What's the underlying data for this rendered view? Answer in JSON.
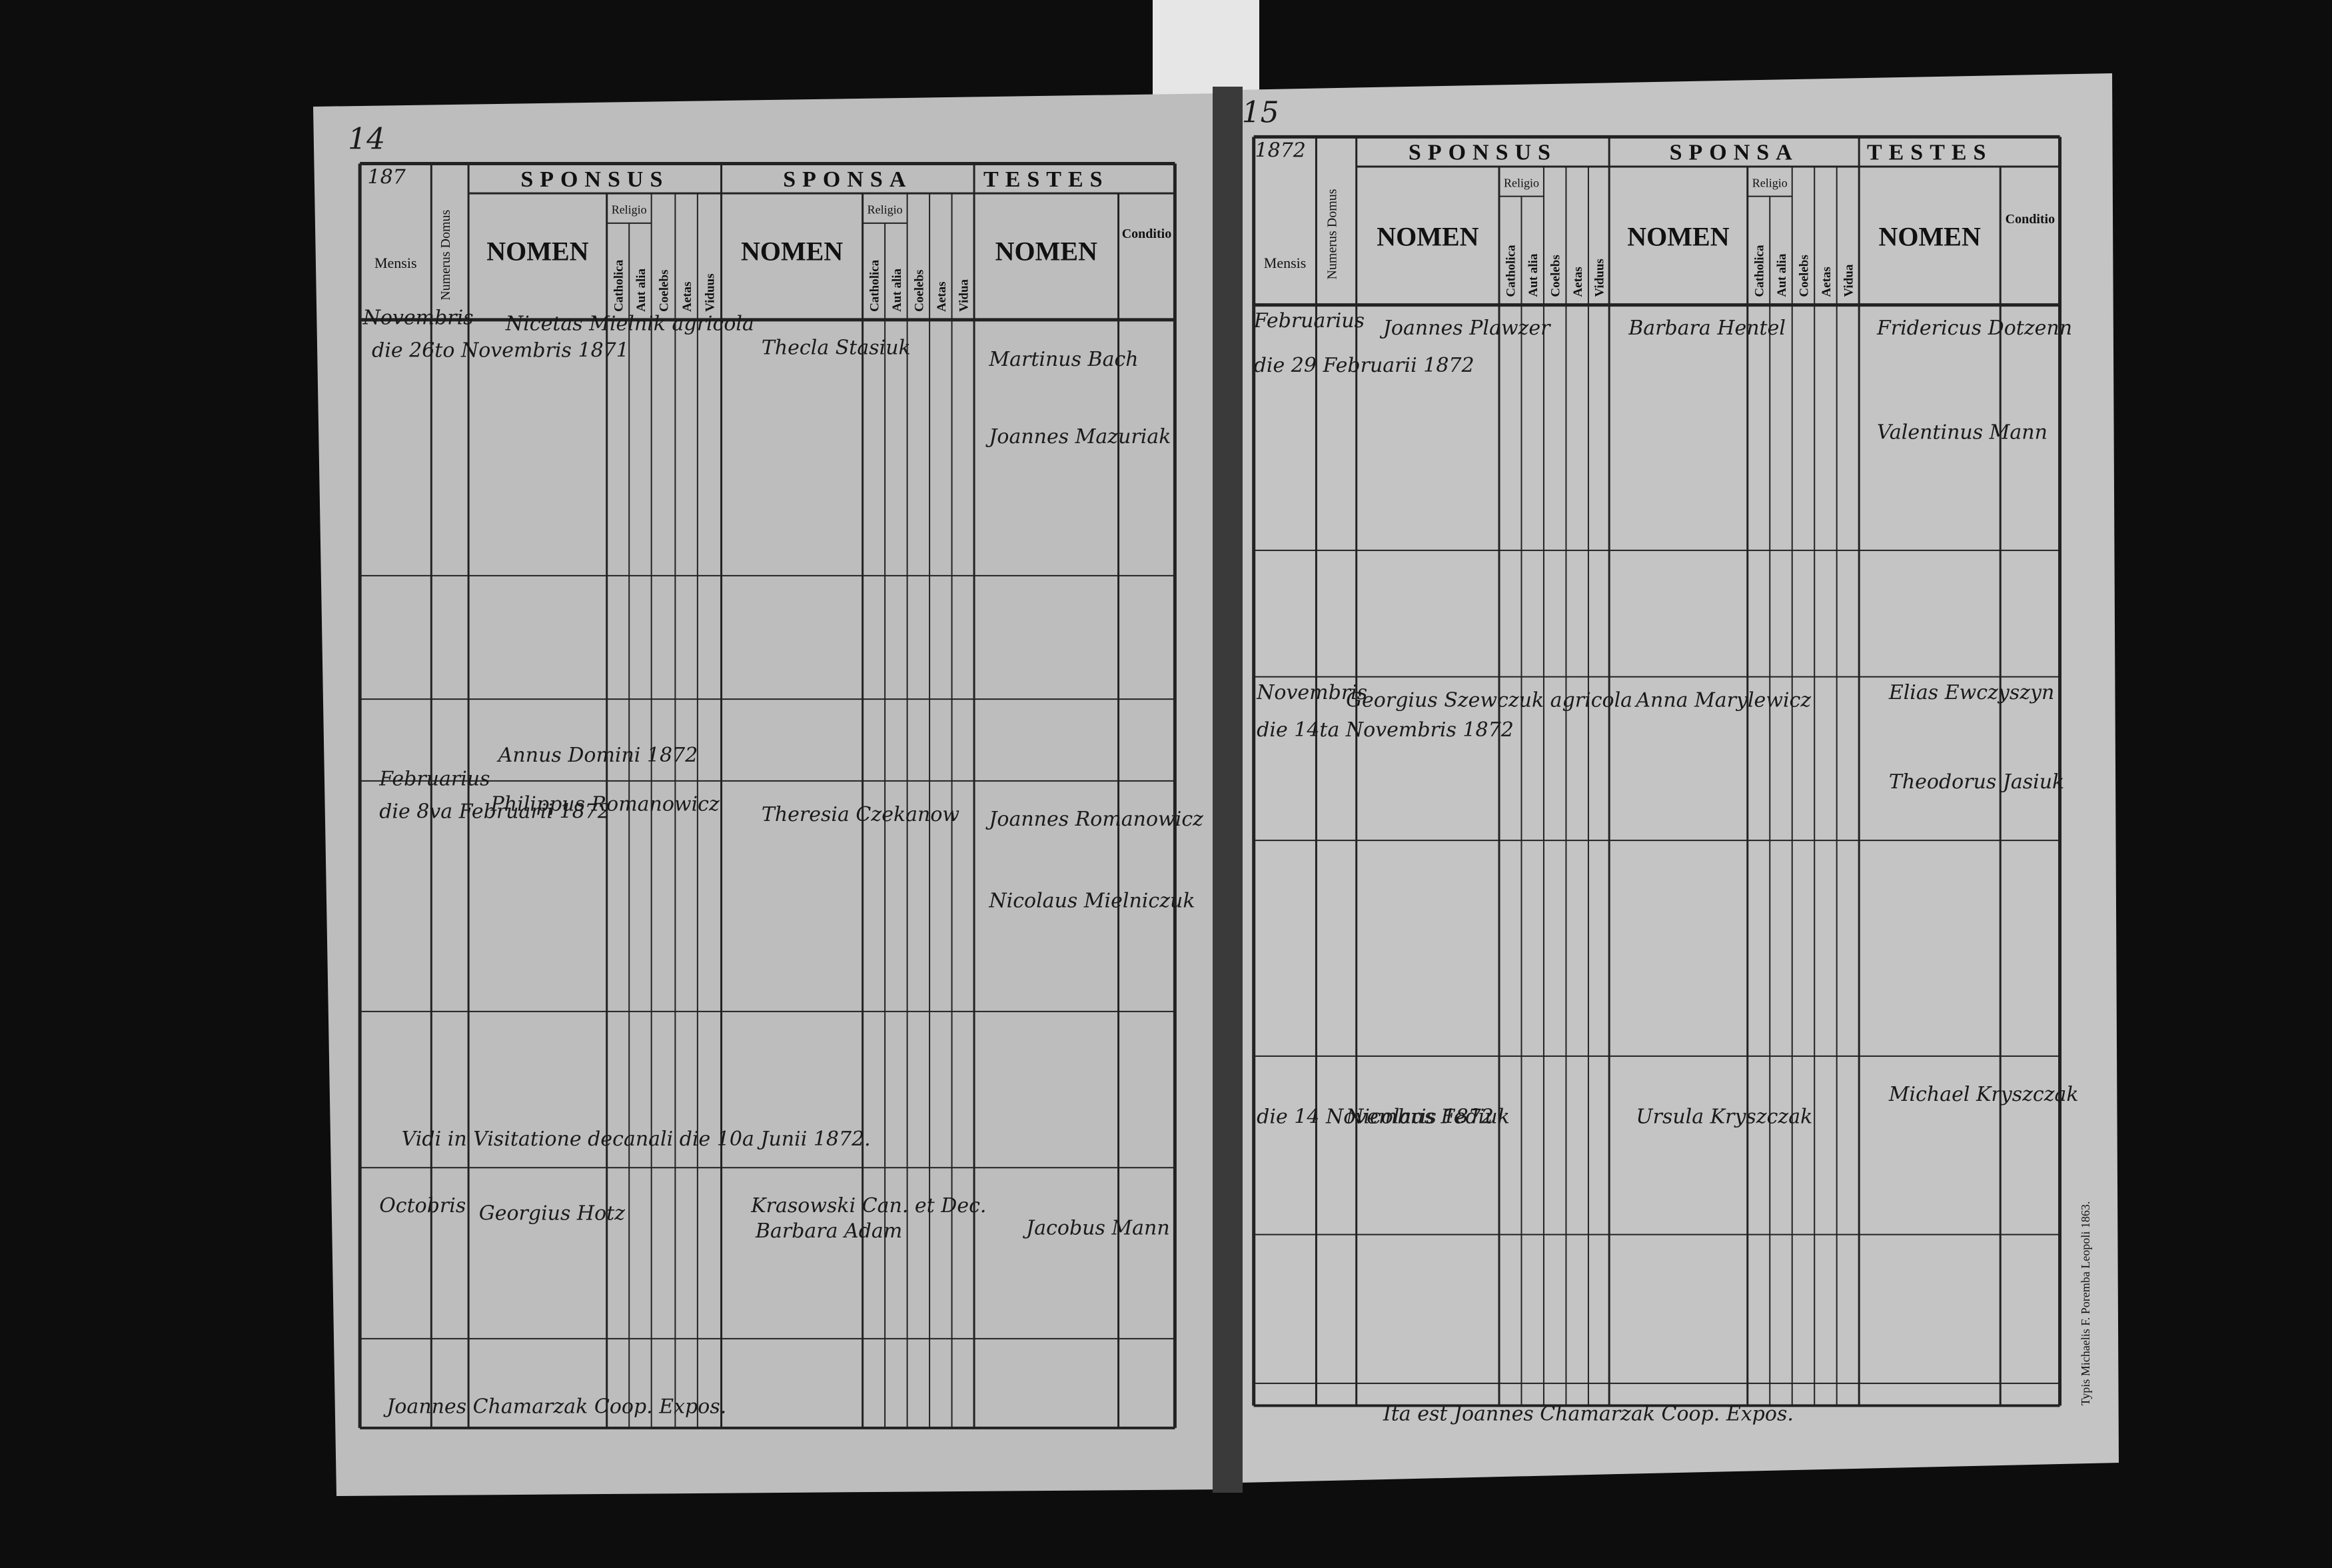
{
  "pages": [
    {
      "page_number": "14",
      "year": "187",
      "mensis": "Mensis",
      "numerus_domus": "Numerus Domus",
      "groups": [
        "SPONSUS",
        "SPONSA",
        "TESTES"
      ],
      "nomen": [
        "NOMEN",
        "NOMEN",
        "NOMEN"
      ],
      "religio": [
        "Religio",
        "Religio"
      ],
      "sponsus_columns": [
        "Catholica",
        "Aut alia",
        "Coelebs",
        "Aetas",
        "Viduus"
      ],
      "sponsa_columns": [
        "Catholica",
        "Aut alia",
        "Coelebs",
        "Aetas",
        "Vidua"
      ],
      "conditio": "Conditio",
      "notes": [
        "Novembris",
        "die 26to Novembris 1871",
        "Nicetas Mielnik agricola",
        "Thecla Stasiuk",
        "Martinus Bach",
        "Joannes Mazuriak",
        "Annus Domini 1872",
        "Februarius",
        "die 8va Februarii 1872",
        "Philippus Romanowicz",
        "Theresia Czekanow",
        "Joannes Romanowicz",
        "Nicolaus Mielniczuk",
        "Vidi in Visitatione decanali die 10a Junii 1872.",
        "Krasowski Can. et Dec.",
        "Octobris",
        "Georgius Hotz",
        "Barbara Adam",
        "Jacobus Mann",
        "Joannes Chamarzak Coop. Expos."
      ]
    },
    {
      "page_number": "15",
      "year": "1872",
      "mensis": "Mensis",
      "numerus_domus": "Numerus Domus",
      "groups": [
        "SPONSUS",
        "SPONSA",
        "TESTES"
      ],
      "nomen": [
        "NOMEN",
        "NOMEN",
        "NOMEN"
      ],
      "religio": [
        "Religio",
        "Religio"
      ],
      "sponsus_columns": [
        "Catholica",
        "Aut alia",
        "Coelebs",
        "Aetas",
        "Viduus"
      ],
      "sponsa_columns": [
        "Catholica",
        "Aut alia",
        "Coelebs",
        "Aetas",
        "Vidua"
      ],
      "conditio": "Conditio",
      "notes": [
        "Februarius",
        "die 29 Februarii 1872",
        "Joannes Plawzer",
        "Barbara Hentel",
        "Fridericus Dotzenn",
        "Valentinus Mann",
        "Novembris",
        "die 14ta Novembris 1872",
        "Georgius Szewczuk agricola",
        "Anna Marylewicz",
        "Elias Ewczyszyn",
        "Theodorus Jasiuk",
        "die 14 Novembris 1872",
        "Nicolaus Fediuk",
        "Ursula Kryszczak",
        "Michael Kryszczak",
        "Ita est Joannes Chamarzak Coop. Expos."
      ],
      "imprint": "Typis Michaelis F. Poremba Leopoli 1863."
    }
  ]
}
